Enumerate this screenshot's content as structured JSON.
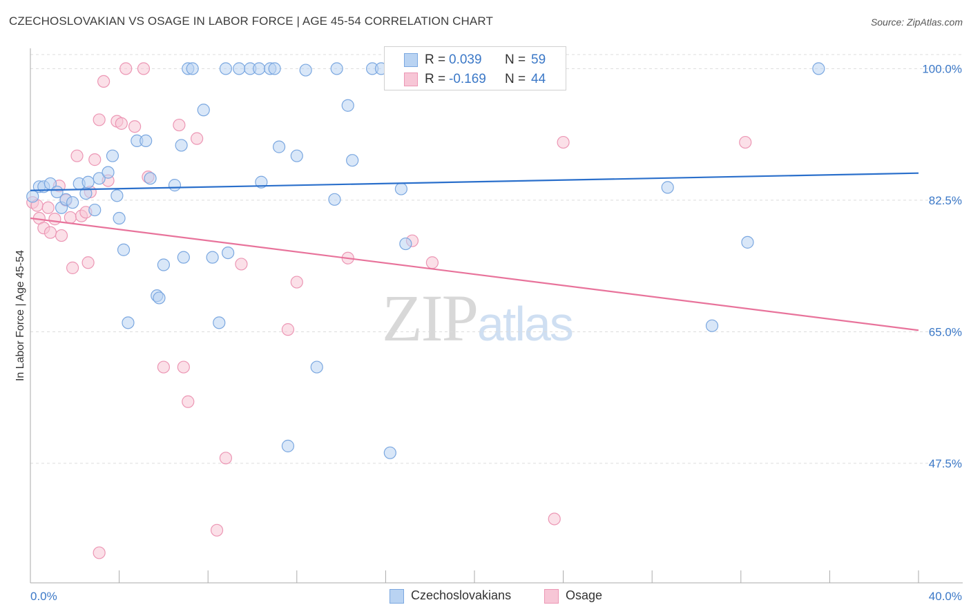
{
  "title": "CZECHOSLOVAKIAN VS OSAGE IN LABOR FORCE | AGE 45-54 CORRELATION CHART",
  "source": "Source: ZipAtlas.com",
  "watermark": {
    "zip": "ZIP",
    "atlas": "atlas"
  },
  "legend": {
    "rows": [
      {
        "r_label": "R =",
        "r_value": "0.039",
        "n_label": "N =",
        "n_value": "59"
      },
      {
        "r_label": "R =",
        "r_value": "-0.169",
        "n_label": "N =",
        "n_value": "44"
      }
    ]
  },
  "bottom_legend": [
    "Czechoslovakians",
    "Osage"
  ],
  "colors": {
    "blue_fill": "#b9d3f2",
    "blue_stroke": "#7aa7e0",
    "blue_line": "#2a6fcb",
    "pink_fill": "#f7c6d6",
    "pink_stroke": "#ec96b4",
    "pink_line": "#e8739b",
    "grid": "#dcdcdc",
    "tick_text": "#3b78c7"
  },
  "chart_data": {
    "type": "scatter",
    "title": "CZECHOSLOVAKIAN VS OSAGE IN LABOR FORCE | AGE 45-54 CORRELATION CHART",
    "xlabel": "",
    "ylabel": "In Labor Force | Age 45-54",
    "xlim": [
      0,
      40
    ],
    "ylim": [
      31.6,
      102.7
    ],
    "x_tick_labels": [
      "0.0%",
      "40.0%"
    ],
    "y_ticks": [
      100.0,
      82.5,
      65.0,
      47.5
    ],
    "y_tick_labels": [
      "100.0%",
      "82.5%",
      "65.0%",
      "47.5%"
    ],
    "grid": true,
    "series": [
      {
        "name": "Czechoslovakians",
        "R": 0.039,
        "N": 59,
        "trend": [
          [
            0,
            83.8
          ],
          [
            40,
            86.1
          ]
        ],
        "points": [
          [
            0.1,
            83.0
          ],
          [
            0.4,
            84.3
          ],
          [
            0.6,
            84.3
          ],
          [
            0.9,
            84.7
          ],
          [
            1.2,
            83.6
          ],
          [
            1.4,
            81.5
          ],
          [
            1.6,
            82.6
          ],
          [
            1.9,
            82.2
          ],
          [
            2.2,
            84.7
          ],
          [
            2.5,
            83.4
          ],
          [
            2.6,
            84.9
          ],
          [
            2.9,
            81.2
          ],
          [
            3.1,
            85.4
          ],
          [
            3.5,
            86.2
          ],
          [
            3.7,
            88.4
          ],
          [
            3.9,
            83.1
          ],
          [
            4.0,
            80.1
          ],
          [
            4.2,
            75.9
          ],
          [
            4.4,
            66.2
          ],
          [
            4.8,
            90.4
          ],
          [
            5.2,
            90.4
          ],
          [
            5.4,
            85.4
          ],
          [
            5.7,
            69.8
          ],
          [
            5.8,
            69.5
          ],
          [
            6.0,
            73.9
          ],
          [
            6.5,
            84.5
          ],
          [
            6.8,
            89.8
          ],
          [
            6.9,
            74.9
          ],
          [
            7.1,
            100.0
          ],
          [
            7.3,
            100.0
          ],
          [
            7.8,
            94.5
          ],
          [
            8.2,
            74.9
          ],
          [
            8.5,
            66.2
          ],
          [
            8.9,
            75.5
          ],
          [
            8.8,
            100.0
          ],
          [
            9.4,
            100.0
          ],
          [
            9.9,
            100.0
          ],
          [
            10.3,
            100.0
          ],
          [
            10.4,
            84.9
          ],
          [
            10.8,
            100.0
          ],
          [
            11.2,
            89.6
          ],
          [
            11.0,
            100.0
          ],
          [
            11.6,
            49.8
          ],
          [
            12.0,
            88.4
          ],
          [
            12.4,
            99.8
          ],
          [
            12.9,
            60.3
          ],
          [
            13.7,
            82.6
          ],
          [
            13.8,
            100.0
          ],
          [
            14.3,
            95.1
          ],
          [
            14.5,
            87.8
          ],
          [
            15.4,
            100.0
          ],
          [
            15.8,
            100.0
          ],
          [
            16.2,
            48.9
          ],
          [
            16.7,
            84.0
          ],
          [
            16.9,
            76.7
          ],
          [
            28.7,
            84.2
          ],
          [
            30.7,
            65.8
          ],
          [
            32.3,
            76.9
          ],
          [
            35.5,
            100.0
          ]
        ]
      },
      {
        "name": "Osage",
        "R": -0.169,
        "N": 44,
        "trend": [
          [
            0,
            80.1
          ],
          [
            40,
            65.2
          ]
        ],
        "points": [
          [
            0.1,
            82.2
          ],
          [
            0.3,
            81.8
          ],
          [
            0.4,
            80.1
          ],
          [
            0.6,
            78.8
          ],
          [
            0.8,
            81.5
          ],
          [
            0.9,
            78.2
          ],
          [
            1.1,
            80.0
          ],
          [
            1.3,
            84.4
          ],
          [
            1.4,
            77.8
          ],
          [
            1.6,
            82.5
          ],
          [
            1.8,
            80.2
          ],
          [
            1.9,
            73.5
          ],
          [
            2.1,
            88.4
          ],
          [
            2.3,
            80.4
          ],
          [
            2.5,
            80.9
          ],
          [
            2.6,
            74.2
          ],
          [
            2.7,
            83.6
          ],
          [
            2.9,
            87.9
          ],
          [
            3.1,
            93.2
          ],
          [
            3.3,
            98.3
          ],
          [
            3.5,
            85.1
          ],
          [
            3.9,
            93.0
          ],
          [
            4.1,
            92.7
          ],
          [
            4.3,
            100.0
          ],
          [
            4.7,
            92.3
          ],
          [
            5.1,
            100.0
          ],
          [
            5.3,
            85.6
          ],
          [
            6.0,
            60.3
          ],
          [
            6.7,
            92.5
          ],
          [
            6.9,
            60.3
          ],
          [
            7.1,
            55.7
          ],
          [
            7.5,
            90.7
          ],
          [
            8.8,
            48.2
          ],
          [
            8.4,
            38.6
          ],
          [
            3.1,
            35.6
          ],
          [
            9.5,
            74.0
          ],
          [
            11.6,
            65.3
          ],
          [
            12.0,
            71.6
          ],
          [
            14.3,
            74.8
          ],
          [
            17.2,
            77.1
          ],
          [
            18.1,
            74.2
          ],
          [
            23.6,
            40.1
          ],
          [
            24.0,
            90.2
          ],
          [
            32.2,
            90.2
          ]
        ]
      }
    ]
  }
}
